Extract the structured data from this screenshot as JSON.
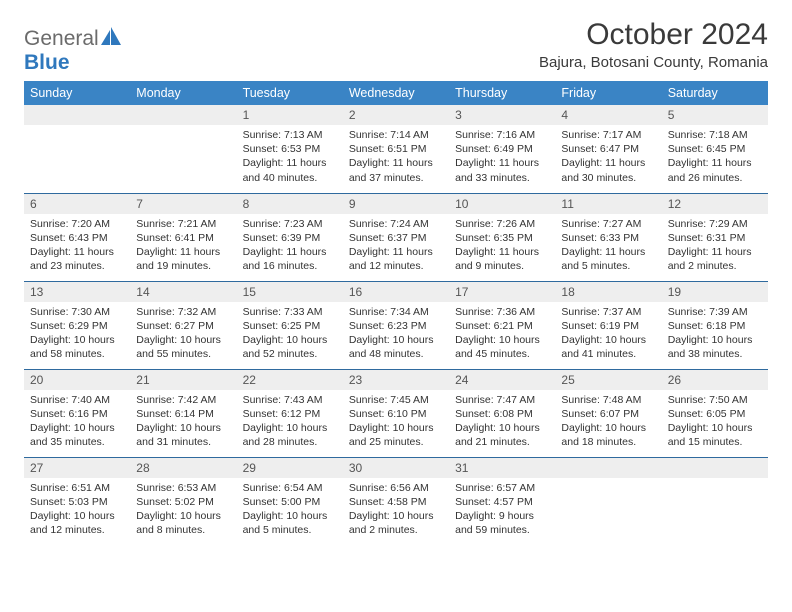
{
  "logo": {
    "general": "General",
    "blue": "Blue"
  },
  "title": "October 2024",
  "location": "Bajura, Botosani County, Romania",
  "colors": {
    "header_bg": "#3a84c5",
    "header_fg": "#ffffff",
    "daynum_bg": "#eeeeee",
    "border": "#2f6a9e",
    "logo_gray": "#6b6b6b",
    "logo_blue": "#2f78bd"
  },
  "columns": [
    "Sunday",
    "Monday",
    "Tuesday",
    "Wednesday",
    "Thursday",
    "Friday",
    "Saturday"
  ],
  "weeks": [
    [
      null,
      null,
      {
        "n": "1",
        "sr": "7:13 AM",
        "ss": "6:53 PM",
        "dl": "11 hours and 40 minutes."
      },
      {
        "n": "2",
        "sr": "7:14 AM",
        "ss": "6:51 PM",
        "dl": "11 hours and 37 minutes."
      },
      {
        "n": "3",
        "sr": "7:16 AM",
        "ss": "6:49 PM",
        "dl": "11 hours and 33 minutes."
      },
      {
        "n": "4",
        "sr": "7:17 AM",
        "ss": "6:47 PM",
        "dl": "11 hours and 30 minutes."
      },
      {
        "n": "5",
        "sr": "7:18 AM",
        "ss": "6:45 PM",
        "dl": "11 hours and 26 minutes."
      }
    ],
    [
      {
        "n": "6",
        "sr": "7:20 AM",
        "ss": "6:43 PM",
        "dl": "11 hours and 23 minutes."
      },
      {
        "n": "7",
        "sr": "7:21 AM",
        "ss": "6:41 PM",
        "dl": "11 hours and 19 minutes."
      },
      {
        "n": "8",
        "sr": "7:23 AM",
        "ss": "6:39 PM",
        "dl": "11 hours and 16 minutes."
      },
      {
        "n": "9",
        "sr": "7:24 AM",
        "ss": "6:37 PM",
        "dl": "11 hours and 12 minutes."
      },
      {
        "n": "10",
        "sr": "7:26 AM",
        "ss": "6:35 PM",
        "dl": "11 hours and 9 minutes."
      },
      {
        "n": "11",
        "sr": "7:27 AM",
        "ss": "6:33 PM",
        "dl": "11 hours and 5 minutes."
      },
      {
        "n": "12",
        "sr": "7:29 AM",
        "ss": "6:31 PM",
        "dl": "11 hours and 2 minutes."
      }
    ],
    [
      {
        "n": "13",
        "sr": "7:30 AM",
        "ss": "6:29 PM",
        "dl": "10 hours and 58 minutes."
      },
      {
        "n": "14",
        "sr": "7:32 AM",
        "ss": "6:27 PM",
        "dl": "10 hours and 55 minutes."
      },
      {
        "n": "15",
        "sr": "7:33 AM",
        "ss": "6:25 PM",
        "dl": "10 hours and 52 minutes."
      },
      {
        "n": "16",
        "sr": "7:34 AM",
        "ss": "6:23 PM",
        "dl": "10 hours and 48 minutes."
      },
      {
        "n": "17",
        "sr": "7:36 AM",
        "ss": "6:21 PM",
        "dl": "10 hours and 45 minutes."
      },
      {
        "n": "18",
        "sr": "7:37 AM",
        "ss": "6:19 PM",
        "dl": "10 hours and 41 minutes."
      },
      {
        "n": "19",
        "sr": "7:39 AM",
        "ss": "6:18 PM",
        "dl": "10 hours and 38 minutes."
      }
    ],
    [
      {
        "n": "20",
        "sr": "7:40 AM",
        "ss": "6:16 PM",
        "dl": "10 hours and 35 minutes."
      },
      {
        "n": "21",
        "sr": "7:42 AM",
        "ss": "6:14 PM",
        "dl": "10 hours and 31 minutes."
      },
      {
        "n": "22",
        "sr": "7:43 AM",
        "ss": "6:12 PM",
        "dl": "10 hours and 28 minutes."
      },
      {
        "n": "23",
        "sr": "7:45 AM",
        "ss": "6:10 PM",
        "dl": "10 hours and 25 minutes."
      },
      {
        "n": "24",
        "sr": "7:47 AM",
        "ss": "6:08 PM",
        "dl": "10 hours and 21 minutes."
      },
      {
        "n": "25",
        "sr": "7:48 AM",
        "ss": "6:07 PM",
        "dl": "10 hours and 18 minutes."
      },
      {
        "n": "26",
        "sr": "7:50 AM",
        "ss": "6:05 PM",
        "dl": "10 hours and 15 minutes."
      }
    ],
    [
      {
        "n": "27",
        "sr": "6:51 AM",
        "ss": "5:03 PM",
        "dl": "10 hours and 12 minutes."
      },
      {
        "n": "28",
        "sr": "6:53 AM",
        "ss": "5:02 PM",
        "dl": "10 hours and 8 minutes."
      },
      {
        "n": "29",
        "sr": "6:54 AM",
        "ss": "5:00 PM",
        "dl": "10 hours and 5 minutes."
      },
      {
        "n": "30",
        "sr": "6:56 AM",
        "ss": "4:58 PM",
        "dl": "10 hours and 2 minutes."
      },
      {
        "n": "31",
        "sr": "6:57 AM",
        "ss": "4:57 PM",
        "dl": "9 hours and 59 minutes."
      },
      null,
      null
    ]
  ],
  "labels": {
    "sunrise": "Sunrise:",
    "sunset": "Sunset:",
    "daylight": "Daylight:"
  }
}
